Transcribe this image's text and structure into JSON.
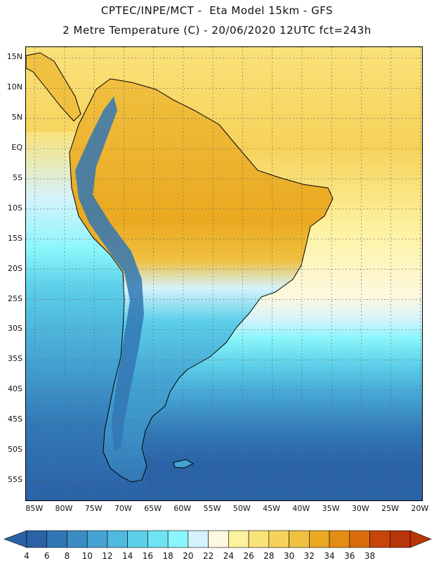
{
  "header": {
    "line1": "CPTEC/INPE/MCT -  Eta Model 15km - GFS",
    "line2": "2 Metre Temperature (C) - 20/06/2020 12UTC fct=243h"
  },
  "axes": {
    "lat_labels": [
      "15N",
      "10N",
      "5N",
      "EQ",
      "5S",
      "10S",
      "15S",
      "20S",
      "25S",
      "30S",
      "35S",
      "40S",
      "45S",
      "50S",
      "55S"
    ],
    "lat_values": [
      15,
      10,
      5,
      0,
      -5,
      -10,
      -15,
      -20,
      -25,
      -30,
      -35,
      -40,
      -45,
      -50,
      -55
    ],
    "lon_labels": [
      "85W",
      "80W",
      "75W",
      "70W",
      "65W",
      "60W",
      "55W",
      "50W",
      "45W",
      "40W",
      "35W",
      "30W",
      "25W",
      "20W"
    ],
    "lon_values": [
      -85,
      -80,
      -75,
      -70,
      -65,
      -60,
      -55,
      -50,
      -45,
      -40,
      -35,
      -30,
      -25,
      -20
    ]
  },
  "colorbar": {
    "labels": [
      "4",
      "6",
      "8",
      "10",
      "12",
      "14",
      "16",
      "18",
      "20",
      "22",
      "24",
      "26",
      "28",
      "30",
      "32",
      "34",
      "36",
      "38"
    ],
    "colors": [
      "#2a62a6",
      "#3277b5",
      "#3a8dc4",
      "#44a3d2",
      "#4fb9df",
      "#5ccfe9",
      "#6ee4f3",
      "#8af6fb",
      "#d4f3fc",
      "#fdf8e0",
      "#fdf2a0",
      "#fae27a",
      "#f6d25a",
      "#f0c040",
      "#eaa920",
      "#e38d14",
      "#da6c0c",
      "#c8450a",
      "#b83508"
    ],
    "low_arrow_color": "#2a62a6",
    "high_arrow_color": "#b83508"
  },
  "map": {
    "ocean_south_color": "#2a62a6",
    "land_tropics_color": "#f0c040",
    "andes_color": "#3277b5",
    "coast_color": "#000000"
  }
}
